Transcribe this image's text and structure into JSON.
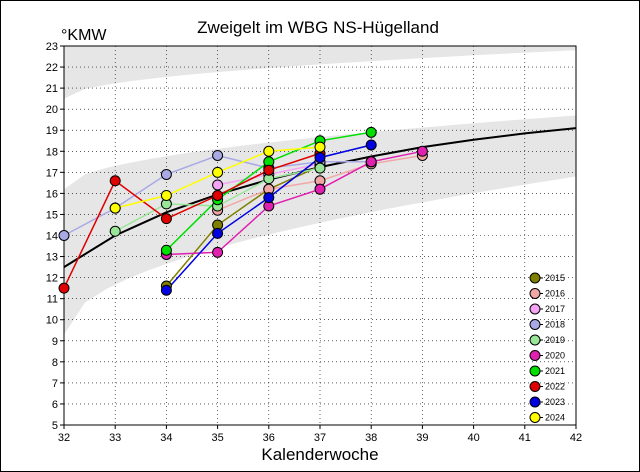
{
  "chart_data": {
    "type": "line",
    "title": "Zweigelt im WBG NS-Hügelland",
    "ylabel": "°KMW",
    "xlabel": "Kalenderwoche",
    "xlim": [
      32,
      42
    ],
    "ylim": [
      5,
      23
    ],
    "x_ticks": [
      "32",
      "33",
      "34",
      "35",
      "36",
      "37",
      "38",
      "39",
      "40",
      "41",
      "42"
    ],
    "y_ticks": [
      "5",
      "6",
      "7",
      "8",
      "9",
      "10",
      "11",
      "12",
      "13",
      "14",
      "15",
      "16",
      "17",
      "18",
      "19",
      "20",
      "21",
      "22",
      "23"
    ],
    "grid": true,
    "legend_position": "bottom-right",
    "trend": {
      "color": "#000000",
      "x": [
        32,
        33,
        34,
        35,
        36,
        37,
        38,
        39,
        40,
        41,
        42
      ],
      "y": [
        12.5,
        14.0,
        15.1,
        15.95,
        16.65,
        17.25,
        17.75,
        18.2,
        18.55,
        18.85,
        19.1
      ]
    },
    "bands": [
      {
        "color": "#e6e6e6",
        "x": [
          32,
          42
        ],
        "lower": [
          20.5,
          22.8
        ],
        "upper": [
          23,
          23
        ]
      },
      {
        "color": "#e6e6e6",
        "x": [
          32,
          42
        ],
        "lower": [
          9.3,
          16.8
        ],
        "upper": [
          16.2,
          19.7
        ]
      }
    ],
    "series": [
      {
        "name": "2015",
        "color": "#808000",
        "x": [
          34,
          35,
          36,
          37
        ],
        "y": [
          11.6,
          14.5,
          16.2,
          17.3
        ]
      },
      {
        "name": "2016",
        "color": "#f2a7a7",
        "x": [
          35,
          36,
          37,
          38,
          39
        ],
        "y": [
          15.2,
          16.2,
          16.6,
          17.4,
          17.8
        ]
      },
      {
        "name": "2017",
        "color": "#f5a3f5",
        "x": [
          35,
          36,
          37
        ],
        "y": [
          16.4,
          16.9,
          17.4
        ]
      },
      {
        "name": "2018",
        "color": "#a9a9e6",
        "x": [
          32,
          33,
          34,
          35,
          36,
          37,
          38
        ],
        "y": [
          14.0,
          15.3,
          16.9,
          17.8,
          17.2,
          17.5,
          17.5
        ]
      },
      {
        "name": "2019",
        "color": "#99e699",
        "x": [
          33,
          34,
          35,
          36,
          37
        ],
        "y": [
          14.2,
          15.5,
          15.4,
          16.7,
          17.2
        ]
      },
      {
        "name": "2020",
        "color": "#e020b0",
        "x": [
          34,
          35,
          36,
          37,
          38,
          39
        ],
        "y": [
          13.1,
          13.2,
          15.4,
          16.2,
          17.5,
          18.0
        ]
      },
      {
        "name": "2021",
        "color": "#00e000",
        "x": [
          34,
          35,
          36,
          37,
          38
        ],
        "y": [
          13.3,
          15.7,
          17.5,
          18.5,
          18.9
        ]
      },
      {
        "name": "2022",
        "color": "#e00000",
        "x": [
          32,
          33,
          34,
          35,
          36,
          37
        ],
        "y": [
          11.5,
          16.6,
          14.8,
          15.9,
          17.1,
          17.9
        ]
      },
      {
        "name": "2023",
        "color": "#0000e0",
        "x": [
          34,
          35,
          36,
          37,
          38
        ],
        "y": [
          11.4,
          14.1,
          15.8,
          17.7,
          18.3
        ]
      },
      {
        "name": "2024",
        "color": "#ffff00",
        "x": [
          33,
          34,
          35,
          36,
          37
        ],
        "y": [
          15.3,
          15.9,
          17.0,
          18.0,
          18.2
        ]
      }
    ]
  }
}
